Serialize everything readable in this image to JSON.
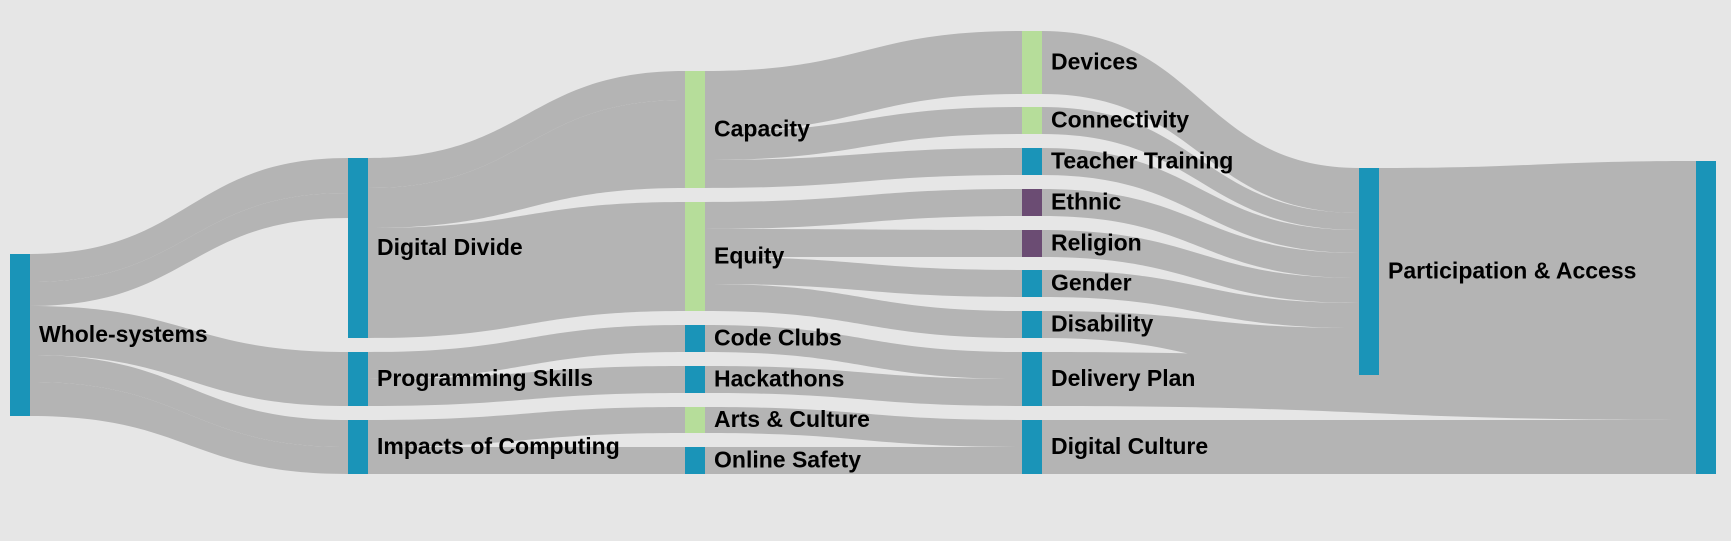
{
  "colors": {
    "background": "#e6e6e6",
    "link": "#b4b4b4",
    "blue": "#1a94b8",
    "green": "#b6dd9a",
    "purple": "#6b4c73"
  },
  "nodes": [
    {
      "id": "whole",
      "label": "Whole-systems",
      "color": "blue"
    },
    {
      "id": "divide",
      "label": "Digital Divide",
      "color": "blue"
    },
    {
      "id": "prog",
      "label": "Programming Skills",
      "color": "blue"
    },
    {
      "id": "impacts",
      "label": "Impacts of Computing",
      "color": "blue"
    },
    {
      "id": "capacity",
      "label": "Capacity",
      "color": "green"
    },
    {
      "id": "equity",
      "label": "Equity",
      "color": "green"
    },
    {
      "id": "codeclubs",
      "label": "Code Clubs",
      "color": "blue"
    },
    {
      "id": "hackathons",
      "label": "Hackathons",
      "color": "blue"
    },
    {
      "id": "arts",
      "label": "Arts & Culture",
      "color": "green"
    },
    {
      "id": "safety",
      "label": "Online Safety",
      "color": "blue"
    },
    {
      "id": "devices",
      "label": "Devices",
      "color": "green"
    },
    {
      "id": "connectivity",
      "label": "Connectivity",
      "color": "green"
    },
    {
      "id": "teacher",
      "label": "Teacher Training",
      "color": "blue"
    },
    {
      "id": "ethnic",
      "label": "Ethnic",
      "color": "purple"
    },
    {
      "id": "religion",
      "label": "Religion",
      "color": "purple"
    },
    {
      "id": "gender",
      "label": "Gender",
      "color": "blue"
    },
    {
      "id": "disability",
      "label": "Disability",
      "color": "blue"
    },
    {
      "id": "delivery",
      "label": "Delivery Plan",
      "color": "blue"
    },
    {
      "id": "culture",
      "label": "Digital Culture",
      "color": "blue"
    },
    {
      "id": "participation",
      "label": "Participation & Access",
      "color": "blue"
    },
    {
      "id": "final",
      "label": "",
      "color": "blue"
    }
  ]
}
